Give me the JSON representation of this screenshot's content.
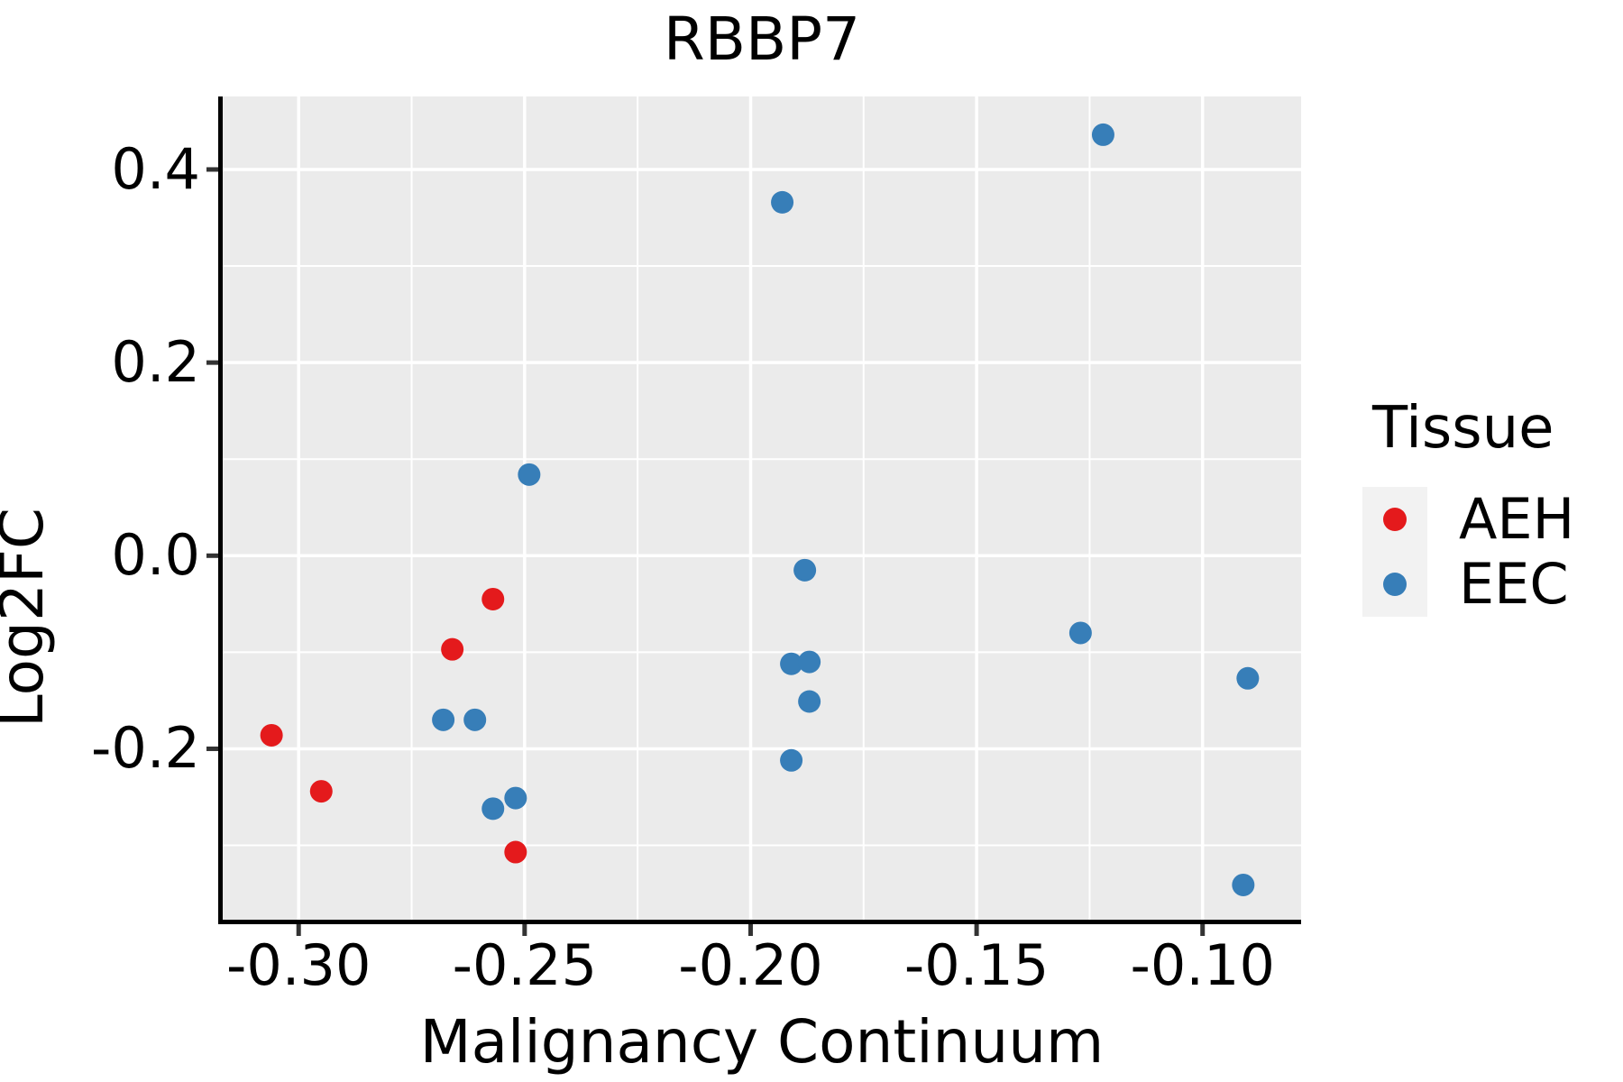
{
  "figure": {
    "background": "#ffffff"
  },
  "chart_data": {
    "type": "scatter",
    "title": "RBBP7",
    "xlabel": "Malignancy Continuum",
    "ylabel": "Log2FC",
    "xlim": [
      -0.3168,
      -0.0782
    ],
    "ylim": [
      -0.377,
      0.4756
    ],
    "grid": true,
    "legend_position": "right",
    "panel_background": "#ebebeb",
    "grid_color": "#ffffff",
    "spine_color": "#000000",
    "tick_color": "#333333",
    "x_ticks": [
      {
        "value": -0.3,
        "label": "-0.30"
      },
      {
        "value": -0.25,
        "label": "-0.25"
      },
      {
        "value": -0.2,
        "label": "-0.20"
      },
      {
        "value": -0.15,
        "label": "-0.15"
      },
      {
        "value": -0.1,
        "label": "-0.10"
      }
    ],
    "y_ticks": [
      {
        "value": 0.4,
        "label": "0.4"
      },
      {
        "value": 0.2,
        "label": "0.2"
      },
      {
        "value": 0.0,
        "label": "0.0"
      },
      {
        "value": -0.2,
        "label": "-0.2"
      }
    ],
    "x_minor_gridlines": [
      -0.275,
      -0.225,
      -0.175,
      -0.125
    ],
    "y_minor_gridlines": [
      0.3,
      0.1,
      -0.1,
      -0.3
    ],
    "marker_radius": 12.5,
    "legend": {
      "title": "Tissue"
    },
    "series": [
      {
        "name": "AEH",
        "color": "#e41a1c",
        "points": [
          [
            -0.306,
            -0.186
          ],
          [
            -0.295,
            -0.244
          ],
          [
            -0.266,
            -0.097
          ],
          [
            -0.257,
            -0.045
          ],
          [
            -0.252,
            -0.307
          ]
        ]
      },
      {
        "name": "EEC",
        "color": "#377eb8",
        "points": [
          [
            -0.268,
            -0.17
          ],
          [
            -0.261,
            -0.17
          ],
          [
            -0.257,
            -0.262
          ],
          [
            -0.252,
            -0.251
          ],
          [
            -0.249,
            0.084
          ],
          [
            -0.193,
            0.366
          ],
          [
            -0.191,
            -0.112
          ],
          [
            -0.191,
            -0.212
          ],
          [
            -0.188,
            -0.015
          ],
          [
            -0.187,
            -0.11
          ],
          [
            -0.187,
            -0.151
          ],
          [
            -0.127,
            -0.08
          ],
          [
            -0.122,
            0.436
          ],
          [
            -0.09,
            -0.127
          ],
          [
            -0.091,
            -0.341
          ]
        ]
      }
    ]
  }
}
